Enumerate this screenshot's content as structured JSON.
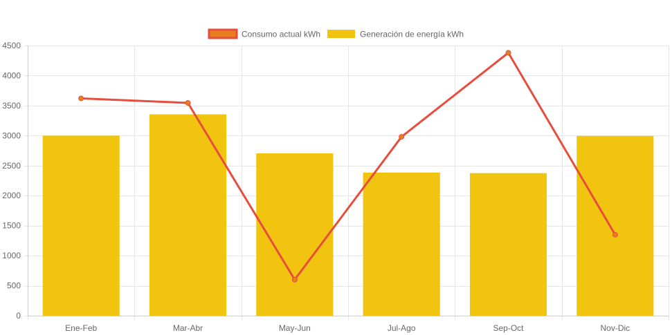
{
  "colors": {
    "bar_fill": "#f1c40f",
    "line_stroke": "#e74c3c",
    "point_fill": "#e67e22",
    "grid": "#e5e5e5",
    "axis_text": "#666666"
  },
  "chart_data": {
    "type": "bar",
    "categories": [
      "Ene-Feb",
      "Mar-Abr",
      "May-Jun",
      "Jul-Ago",
      "Sep-Oct",
      "Nov-Dic"
    ],
    "series": [
      {
        "name": "Consumo actual kWh",
        "type": "line",
        "values": [
          3620,
          3545,
          600,
          2980,
          4380,
          1350
        ]
      },
      {
        "name": "Generación de energía kWh",
        "type": "bar",
        "values": [
          3000,
          3355,
          2705,
          2385,
          2375,
          2995
        ]
      }
    ],
    "ylim": [
      0,
      4500
    ],
    "yticks": [
      0,
      500,
      1000,
      1500,
      2000,
      2500,
      3000,
      3500,
      4000,
      4500
    ],
    "grid": true,
    "legend_position": "top-center"
  }
}
